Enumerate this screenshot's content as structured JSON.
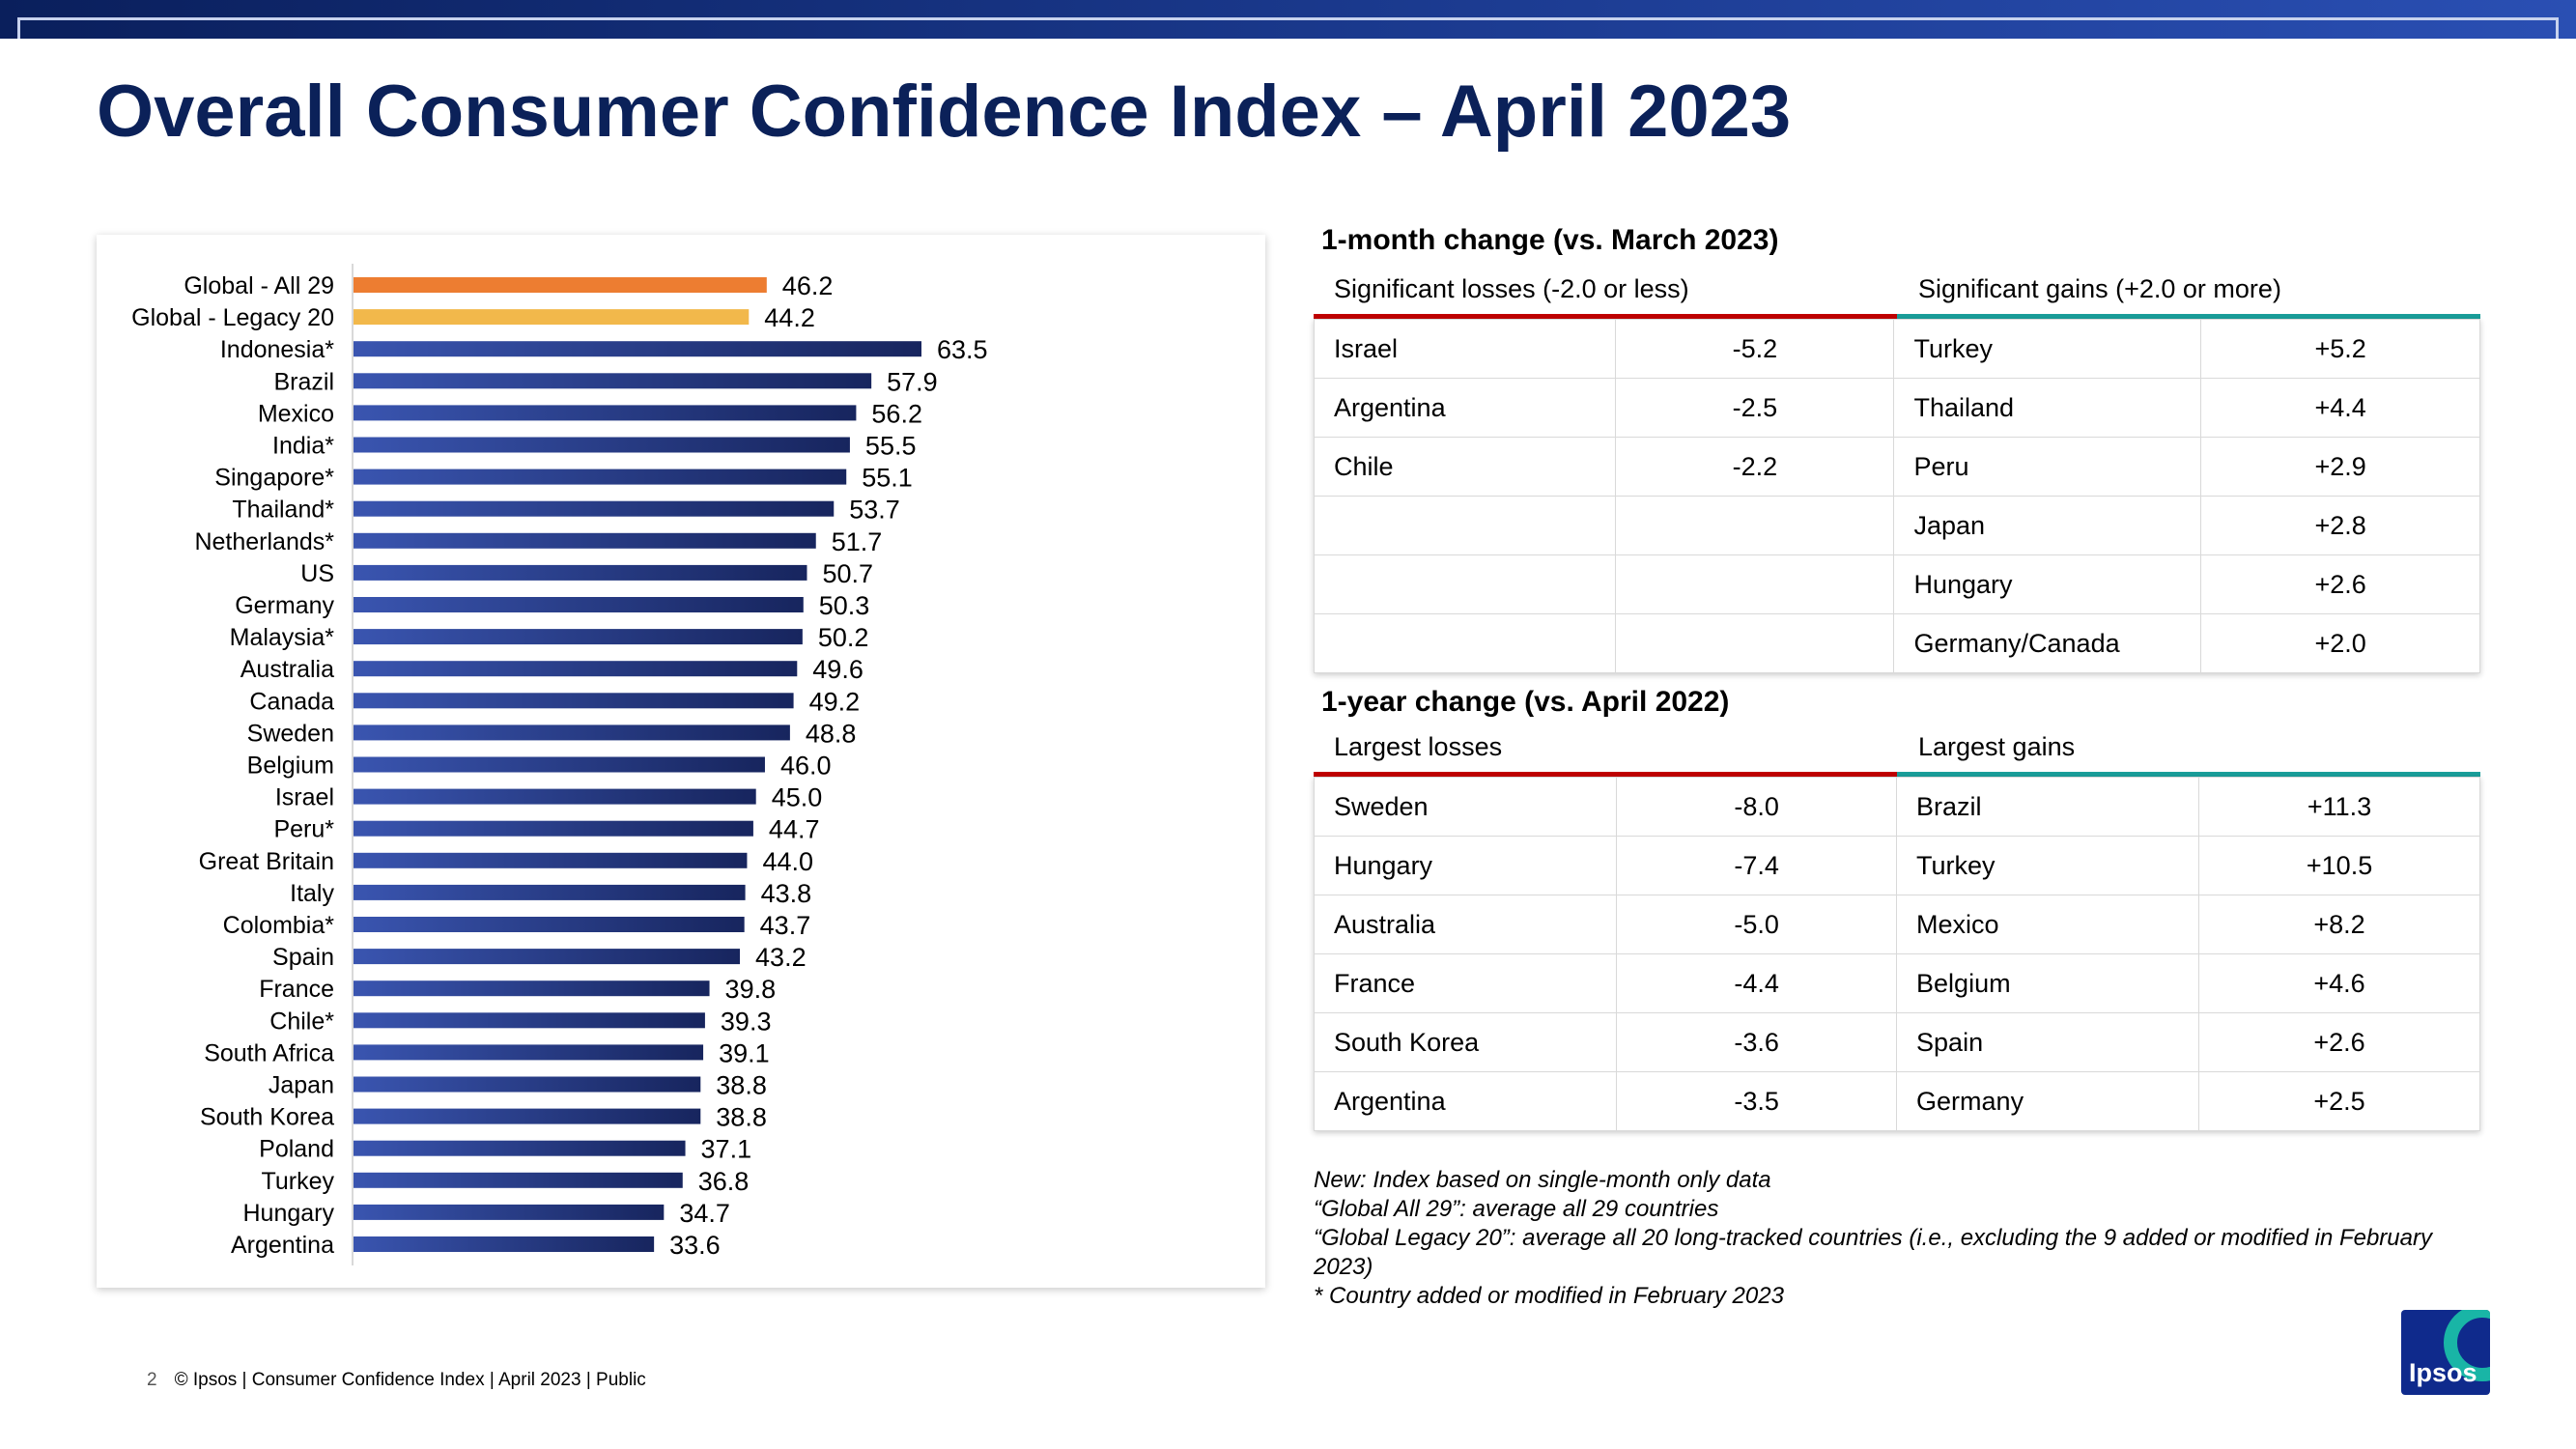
{
  "title": "Overall Consumer Confidence Index – April 2023",
  "colors": {
    "global_all": "#ed7d31",
    "global_legacy": "#f2b84b",
    "country": "#2b3f8f"
  },
  "chart_data": {
    "type": "bar",
    "orientation": "horizontal",
    "categories": [
      "Global - All 29",
      "Global - Legacy 20",
      "Indonesia*",
      "Brazil",
      "Mexico",
      "India*",
      "Singapore*",
      "Thailand*",
      "Netherlands*",
      "US",
      "Germany",
      "Malaysia*",
      "Australia",
      "Canada",
      "Sweden",
      "Belgium",
      "Israel",
      "Peru*",
      "Great Britain",
      "Italy",
      "Colombia*",
      "Spain",
      "France",
      "Chile*",
      "South Africa",
      "Japan",
      "South Korea",
      "Poland",
      "Turkey",
      "Hungary",
      "Argentina"
    ],
    "values": [
      46.2,
      44.2,
      63.5,
      57.9,
      56.2,
      55.5,
      55.1,
      53.7,
      51.7,
      50.7,
      50.3,
      50.2,
      49.6,
      49.2,
      48.8,
      46.0,
      45.0,
      44.7,
      44.0,
      43.8,
      43.7,
      43.2,
      39.8,
      39.3,
      39.1,
      38.8,
      38.8,
      37.1,
      36.8,
      34.7,
      33.6
    ],
    "value_labels": [
      "46.2",
      "44.2",
      "63.5",
      "57.9",
      "56.2",
      "55.5",
      "55.1",
      "53.7",
      "51.7",
      "50.7",
      "50.3",
      "50.2",
      "49.6",
      "49.2",
      "48.8",
      "46.0",
      "45.0",
      "44.7",
      "44.0",
      "43.8",
      "43.7",
      "43.2",
      "39.8",
      "39.3",
      "39.1",
      "38.8",
      "38.8",
      "37.1",
      "36.8",
      "34.7",
      "33.6"
    ],
    "xlim": [
      0,
      100
    ],
    "grid": false,
    "legend": "none"
  },
  "month": {
    "heading": "1-month change (vs. March 2023)",
    "losses_header": "Significant losses (-2.0 or less)",
    "gains_header": "Significant gains (+2.0 or more)",
    "rows": [
      [
        "Israel",
        "-5.2",
        "Turkey",
        "+5.2"
      ],
      [
        "Argentina",
        "-2.5",
        "Thailand",
        "+4.4"
      ],
      [
        "Chile",
        "-2.2",
        "Peru",
        "+2.9"
      ],
      [
        "",
        "",
        "Japan",
        "+2.8"
      ],
      [
        "",
        "",
        "Hungary",
        "+2.6"
      ],
      [
        "",
        "",
        "Germany/Canada",
        "+2.0"
      ]
    ]
  },
  "year": {
    "heading": "1-year change (vs. April 2022)",
    "losses_header": "Largest losses",
    "gains_header": "Largest gains",
    "rows": [
      [
        "Sweden",
        "-8.0",
        "Brazil",
        "+11.3"
      ],
      [
        "Hungary",
        "-7.4",
        "Turkey",
        "+10.5"
      ],
      [
        "Australia",
        "-5.0",
        "Mexico",
        "+8.2"
      ],
      [
        "France",
        "-4.4",
        "Belgium",
        "+4.6"
      ],
      [
        "South Korea",
        "-3.6",
        "Spain",
        "+2.6"
      ],
      [
        "Argentina",
        "-3.5",
        "Germany",
        "+2.5"
      ]
    ]
  },
  "notes": [
    "New: Index based on single-month only data",
    "“Global All 29”: average all 29 countries",
    "“Global Legacy 20”: average all 20 long-tracked countries (i.e., excluding the 9 added or modified in February 2023)",
    "* Country added or modified in February 2023"
  ],
  "footer": {
    "page": "2",
    "text": "© Ipsos | Consumer Confidence Index | April 2023 | Public"
  },
  "logo": {
    "text": "Ipsos",
    "icon": "ipsos-logo-icon"
  }
}
